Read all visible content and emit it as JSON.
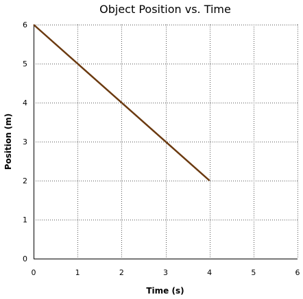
{
  "chart_data": {
    "type": "line",
    "title": "Object Position vs. Time",
    "xlabel": "Time (s)",
    "ylabel": "Position (m)",
    "xlim": [
      0,
      6
    ],
    "ylim": [
      0,
      6
    ],
    "xticks": [
      0,
      1,
      2,
      3,
      4,
      5,
      6
    ],
    "yticks": [
      0,
      1,
      2,
      3,
      4,
      5,
      6
    ],
    "grid": true,
    "legend": "none",
    "series": [
      {
        "x": [
          0,
          4
        ],
        "y": [
          6,
          2
        ],
        "color": "#6b3a10"
      }
    ]
  }
}
